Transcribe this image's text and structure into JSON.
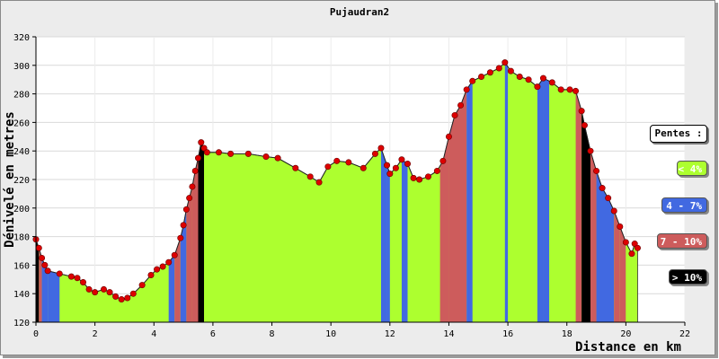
{
  "chart_data": {
    "type": "area",
    "title": "Pujaudran2",
    "xlabel": "Distance en km",
    "ylabel": "Dénivelé en metres",
    "xlim": [
      0,
      22
    ],
    "ylim": [
      120,
      320
    ],
    "xticks": [
      "0",
      "2",
      "4",
      "6",
      "8",
      "10",
      "12",
      "14",
      "16",
      "18",
      "20",
      "22"
    ],
    "yticks": [
      "120",
      "140",
      "160",
      "180",
      "200",
      "220",
      "240",
      "260",
      "280",
      "300",
      "320"
    ],
    "grid": true,
    "colors": {
      "gentle": "#adff2f",
      "moderate": "#4169e1",
      "steep": "#cd5c5c",
      "very_steep": "#000000",
      "points": "#dd0000",
      "frame": "#ececec"
    },
    "legend": {
      "title": "Pentes :",
      "placement": "right",
      "items": [
        {
          "label": "< 4%",
          "color": "#adff2f"
        },
        {
          "label": "4 - 7%",
          "color": "#4169e1"
        },
        {
          "label": "7 - 10%",
          "color": "#cd5c5c"
        },
        {
          "label": "> 10%",
          "color": "#000000"
        }
      ]
    },
    "profile": [
      [
        0,
        178
      ],
      [
        0.1,
        172
      ],
      [
        0.2,
        165
      ],
      [
        0.3,
        160
      ],
      [
        0.4,
        156
      ],
      [
        0.8,
        154
      ],
      [
        1.2,
        152
      ],
      [
        1.4,
        151
      ],
      [
        1.6,
        148
      ],
      [
        1.8,
        143
      ],
      [
        2.0,
        141
      ],
      [
        2.3,
        143
      ],
      [
        2.5,
        141
      ],
      [
        2.7,
        138
      ],
      [
        2.9,
        136
      ],
      [
        3.1,
        137
      ],
      [
        3.3,
        140
      ],
      [
        3.6,
        146
      ],
      [
        3.9,
        153
      ],
      [
        4.1,
        157
      ],
      [
        4.3,
        159
      ],
      [
        4.5,
        162
      ],
      [
        4.7,
        167
      ],
      [
        4.9,
        179
      ],
      [
        5.0,
        188
      ],
      [
        5.1,
        199
      ],
      [
        5.2,
        207
      ],
      [
        5.3,
        215
      ],
      [
        5.4,
        226
      ],
      [
        5.5,
        235
      ],
      [
        5.6,
        246
      ],
      [
        5.7,
        242
      ],
      [
        5.8,
        239
      ],
      [
        6.2,
        239
      ],
      [
        6.6,
        238
      ],
      [
        7.2,
        238
      ],
      [
        7.8,
        236
      ],
      [
        8.2,
        235
      ],
      [
        8.8,
        228
      ],
      [
        9.3,
        222
      ],
      [
        9.6,
        218
      ],
      [
        9.9,
        229
      ],
      [
        10.2,
        233
      ],
      [
        10.6,
        232
      ],
      [
        11.1,
        228
      ],
      [
        11.5,
        238
      ],
      [
        11.7,
        242
      ],
      [
        11.9,
        230
      ],
      [
        12.0,
        224
      ],
      [
        12.2,
        228
      ],
      [
        12.4,
        234
      ],
      [
        12.6,
        231
      ],
      [
        12.8,
        221
      ],
      [
        13.0,
        220
      ],
      [
        13.3,
        222
      ],
      [
        13.6,
        226
      ],
      [
        13.8,
        233
      ],
      [
        14.0,
        250
      ],
      [
        14.2,
        265
      ],
      [
        14.4,
        272
      ],
      [
        14.6,
        283
      ],
      [
        14.8,
        289
      ],
      [
        15.1,
        292
      ],
      [
        15.4,
        295
      ],
      [
        15.7,
        298
      ],
      [
        15.9,
        302
      ],
      [
        16.1,
        296
      ],
      [
        16.4,
        292
      ],
      [
        16.7,
        290
      ],
      [
        17.0,
        285
      ],
      [
        17.2,
        291
      ],
      [
        17.5,
        288
      ],
      [
        17.8,
        283
      ],
      [
        18.1,
        283
      ],
      [
        18.3,
        282
      ],
      [
        18.5,
        268
      ],
      [
        18.6,
        258
      ],
      [
        18.8,
        240
      ],
      [
        19.0,
        226
      ],
      [
        19.2,
        214
      ],
      [
        19.4,
        207
      ],
      [
        19.6,
        198
      ],
      [
        19.8,
        187
      ],
      [
        20.0,
        176
      ],
      [
        20.2,
        168
      ],
      [
        20.3,
        175
      ],
      [
        20.4,
        172
      ]
    ],
    "slope_bands": [
      [
        0.0,
        0.1,
        "very_steep"
      ],
      [
        0.1,
        0.2,
        "steep"
      ],
      [
        0.2,
        0.4,
        "moderate"
      ],
      [
        0.4,
        0.8,
        "moderate"
      ],
      [
        4.5,
        4.7,
        "moderate"
      ],
      [
        4.7,
        4.9,
        "steep"
      ],
      [
        4.9,
        5.1,
        "moderate"
      ],
      [
        5.1,
        5.3,
        "steep"
      ],
      [
        5.3,
        5.5,
        "steep"
      ],
      [
        5.5,
        5.7,
        "very_steep"
      ],
      [
        5.7,
        5.8,
        "gentle"
      ],
      [
        11.7,
        11.9,
        "moderate"
      ],
      [
        11.9,
        12.0,
        "moderate"
      ],
      [
        12.4,
        12.6,
        "moderate"
      ],
      [
        13.7,
        14.0,
        "steep"
      ],
      [
        14.0,
        14.6,
        "steep"
      ],
      [
        14.6,
        14.8,
        "moderate"
      ],
      [
        15.9,
        16.0,
        "moderate"
      ],
      [
        17.0,
        17.2,
        "moderate"
      ],
      [
        17.2,
        17.4,
        "moderate"
      ],
      [
        18.3,
        18.5,
        "steep"
      ],
      [
        18.5,
        18.8,
        "very_steep"
      ],
      [
        18.8,
        19.0,
        "steep"
      ],
      [
        19.0,
        19.6,
        "moderate"
      ],
      [
        19.6,
        19.8,
        "steep"
      ],
      [
        19.8,
        20.0,
        "steep"
      ],
      [
        20.0,
        20.2,
        "gentle"
      ]
    ]
  }
}
